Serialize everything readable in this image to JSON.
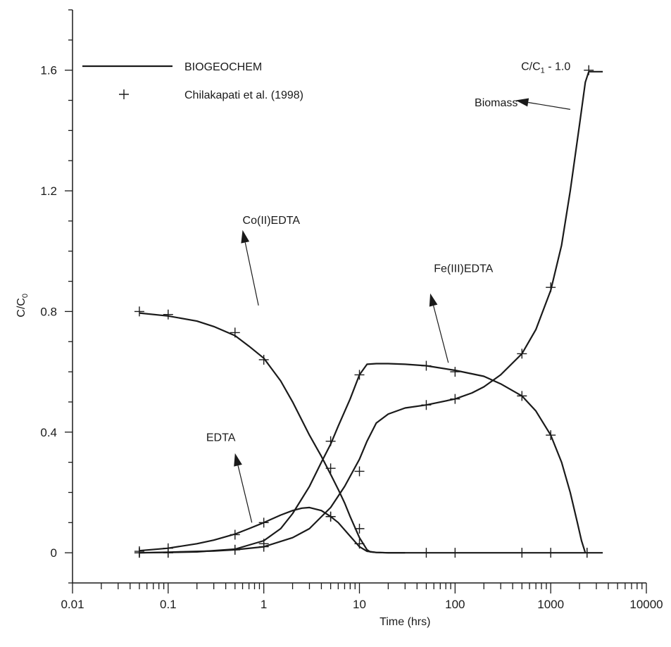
{
  "chart_data": {
    "type": "line",
    "xlabel": "Time (hrs)",
    "ylabel": "C/C",
    "ylabel_sub": "0",
    "xscale": "log",
    "xlim": [
      0.01,
      10000
    ],
    "ylim": [
      -0.1,
      1.8
    ],
    "grid": false,
    "legend_position": "top-left",
    "xticks": [
      {
        "value": 0.01,
        "label": "0.01"
      },
      {
        "value": 0.1,
        "label": "0.1"
      },
      {
        "value": 1,
        "label": "1"
      },
      {
        "value": 10,
        "label": "10"
      },
      {
        "value": 100,
        "label": "100"
      },
      {
        "value": 1000,
        "label": "1000"
      },
      {
        "value": 10000,
        "label": "10000"
      }
    ],
    "yticks": [
      {
        "value": 0,
        "label": "0"
      },
      {
        "value": 0.4,
        "label": "0.4"
      },
      {
        "value": 0.8,
        "label": "0.8"
      },
      {
        "value": 1.2,
        "label": "1.2"
      },
      {
        "value": 1.6,
        "label": "1.6"
      }
    ],
    "legend": [
      {
        "label": "BIOGEOCHEM",
        "marker": "line"
      },
      {
        "label": "Chilakapati et al. (1998)",
        "marker": "plus"
      }
    ],
    "series": [
      {
        "name": "Co(II)EDTA",
        "curve": {
          "x": [
            0.05,
            0.1,
            0.2,
            0.3,
            0.5,
            0.7,
            1,
            1.5,
            2,
            3,
            4,
            5,
            6,
            7,
            8,
            10,
            12,
            13,
            15,
            20,
            30
          ],
          "y": [
            0.795,
            0.785,
            0.768,
            0.75,
            0.72,
            0.685,
            0.645,
            0.57,
            0.5,
            0.39,
            0.32,
            0.26,
            0.21,
            0.165,
            0.12,
            0.05,
            0.01,
            0.003,
            0.001,
            0.0,
            0.0
          ]
        },
        "points": {
          "x": [
            0.05,
            0.1,
            0.5,
            1,
            5,
            10
          ],
          "y": [
            0.8,
            0.79,
            0.73,
            0.64,
            0.28,
            0.03
          ]
        }
      },
      {
        "name": "Fe(III)EDTA",
        "curve": {
          "x": [
            0.05,
            0.1,
            0.2,
            0.5,
            1,
            1.5,
            2,
            3,
            4,
            5,
            6,
            8,
            10,
            12,
            15,
            20,
            30,
            50,
            100,
            200,
            300,
            500,
            700,
            1000,
            1300,
            1600,
            1900,
            2100,
            2300
          ],
          "y": [
            0.0,
            0.001,
            0.003,
            0.012,
            0.04,
            0.08,
            0.13,
            0.22,
            0.3,
            0.36,
            0.42,
            0.51,
            0.59,
            0.625,
            0.627,
            0.627,
            0.625,
            0.62,
            0.605,
            0.585,
            0.56,
            0.52,
            0.47,
            0.39,
            0.3,
            0.2,
            0.1,
            0.04,
            0.0
          ]
        },
        "points": {
          "x": [
            0.05,
            0.1,
            0.5,
            1,
            5,
            10,
            50,
            100,
            500,
            1000,
            2400
          ],
          "y": [
            0.0,
            0.0,
            0.01,
            0.03,
            0.37,
            0.59,
            0.62,
            0.6,
            0.52,
            0.39,
            0.0
          ]
        }
      },
      {
        "name": "EDTA",
        "curve": {
          "x": [
            0.05,
            0.1,
            0.2,
            0.3,
            0.5,
            0.7,
            1,
            1.5,
            2,
            2.5,
            3,
            4,
            5,
            6,
            8,
            10,
            12,
            15,
            20,
            30,
            50,
            100,
            1000,
            3500
          ],
          "y": [
            0.007,
            0.015,
            0.03,
            0.042,
            0.062,
            0.08,
            0.1,
            0.125,
            0.14,
            0.148,
            0.15,
            0.14,
            0.12,
            0.1,
            0.055,
            0.02,
            0.005,
            0.001,
            0.0,
            0.0,
            0.0,
            0.0,
            0.0,
            0.0
          ]
        },
        "points": {
          "x": [
            0.05,
            0.1,
            0.5,
            1,
            5,
            10,
            50,
            100,
            500,
            1000,
            2400
          ],
          "y": [
            0.005,
            0.015,
            0.06,
            0.1,
            0.12,
            0.08,
            0.0,
            0.0,
            0.0,
            0.0,
            0.0
          ]
        }
      },
      {
        "name": "Biomass",
        "curve": {
          "x": [
            0.05,
            0.1,
            0.3,
            0.5,
            1,
            2,
            3,
            5,
            7,
            10,
            12,
            15,
            20,
            30,
            50,
            100,
            150,
            200,
            300,
            500,
            700,
            1000,
            1300,
            1600,
            2000,
            2300,
            2500,
            3500
          ],
          "y": [
            0.0,
            0.002,
            0.006,
            0.01,
            0.02,
            0.05,
            0.08,
            0.15,
            0.22,
            0.31,
            0.37,
            0.43,
            0.46,
            0.48,
            0.49,
            0.51,
            0.53,
            0.55,
            0.59,
            0.66,
            0.74,
            0.87,
            1.02,
            1.2,
            1.42,
            1.56,
            1.595,
            1.595
          ]
        },
        "points": {
          "x": [
            0.05,
            0.1,
            0.5,
            1,
            5,
            10,
            50,
            100,
            500,
            1000,
            2500
          ],
          "y": [
            0.0,
            0.0,
            0.01,
            0.02,
            0.12,
            0.27,
            0.49,
            0.51,
            0.66,
            0.88,
            1.6
          ]
        }
      }
    ],
    "annotations": [
      {
        "text": "Co(II)EDTA",
        "tx": 0.6,
        "ty": 1.09,
        "from": [
          0.88,
          0.82
        ],
        "to": [
          0.6,
          1.07
        ]
      },
      {
        "text": "Fe(III)EDTA",
        "tx": 60,
        "ty": 0.93,
        "from": [
          85,
          0.63
        ],
        "to": [
          55,
          0.86
        ]
      },
      {
        "text": "EDTA",
        "tx": 0.25,
        "ty": 0.37,
        "from": [
          0.75,
          0.1
        ],
        "to": [
          0.5,
          0.33
        ]
      },
      {
        "text": "Biomass",
        "tx": 160,
        "ty": 1.48,
        "from": [
          1600,
          1.47
        ],
        "to": [
          430,
          1.5
        ]
      }
    ],
    "top_right_label": {
      "text": "C/C",
      "sub": "1",
      "suffix": " - 1.0",
      "tx": 490,
      "ty": 1.6
    }
  }
}
